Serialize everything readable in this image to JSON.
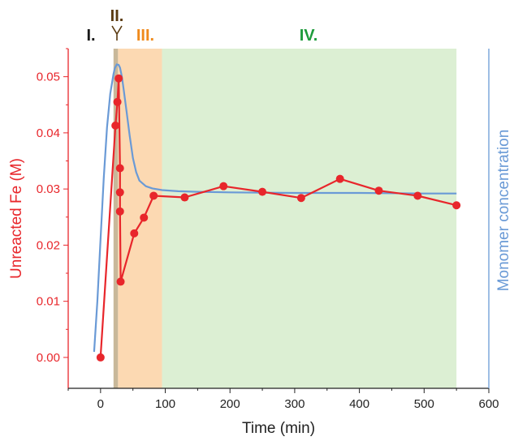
{
  "chart_data": {
    "type": "line",
    "xlabel": "Time (min)",
    "ylabel": "Unreacted Fe (M)",
    "y2label": "Monomer concentration",
    "xlim": [
      -50,
      600
    ],
    "ylim": [
      -0.0055,
      0.055
    ],
    "xticks": [
      0,
      100,
      200,
      300,
      400,
      500,
      600
    ],
    "yticks": [
      0.0,
      0.01,
      0.02,
      0.03,
      0.04,
      0.05
    ],
    "ytick_labels": [
      "0.00",
      "0.01",
      "0.02",
      "0.03",
      "0.04",
      "0.05"
    ],
    "grid": false,
    "phases": [
      {
        "label": "I.",
        "x_start": null,
        "x_end": 20,
        "color": "#1a1a1a"
      },
      {
        "label": "II.",
        "x_start": 20,
        "x_end": 27,
        "color": "#5a3a10",
        "shade": "#c8b89a"
      },
      {
        "label": "III.",
        "x_start": 27,
        "x_end": 95,
        "color": "#f08a1c",
        "shade": "#fcd9b2"
      },
      {
        "label": "IV.",
        "x_start": 95,
        "x_end": 550,
        "color": "#1e9c3c",
        "shade": "#dcefd3"
      }
    ],
    "series": [
      {
        "name": "Unreacted Fe (M)",
        "color": "#e8262b",
        "markers": true,
        "x": [
          0,
          23,
          26,
          28,
          30,
          30,
          30,
          31,
          52,
          67,
          82,
          130,
          190,
          250,
          310,
          370,
          430,
          490,
          550
        ],
        "y": [
          0.0,
          0.0413,
          0.0455,
          0.0497,
          0.0337,
          0.0294,
          0.026,
          0.0135,
          0.0221,
          0.0249,
          0.0288,
          0.0285,
          0.0305,
          0.0295,
          0.0284,
          0.0318,
          0.0297,
          0.0288,
          0.0271
        ]
      },
      {
        "name": "Monomer concentration",
        "color": "#6a9ad6",
        "markers": false,
        "x": [
          -10,
          -5,
          0,
          5,
          10,
          15,
          20,
          22,
          25,
          28,
          30,
          33,
          36,
          40,
          45,
          50,
          55,
          60,
          70,
          80,
          95,
          120,
          150,
          200,
          300,
          400,
          500,
          550
        ],
        "y": [
          0.001,
          0.01,
          0.021,
          0.032,
          0.041,
          0.047,
          0.0505,
          0.0515,
          0.0522,
          0.0521,
          0.0516,
          0.05,
          0.0475,
          0.044,
          0.0395,
          0.0355,
          0.033,
          0.0315,
          0.0305,
          0.0301,
          0.0298,
          0.0296,
          0.0295,
          0.0294,
          0.0293,
          0.0293,
          0.0292,
          0.0292
        ]
      }
    ]
  }
}
